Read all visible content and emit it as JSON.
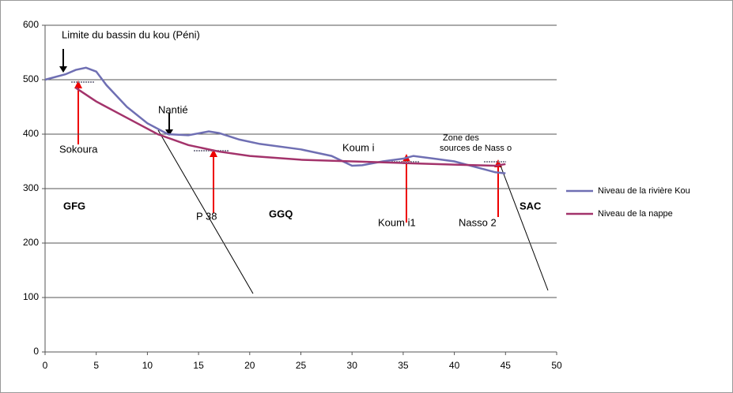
{
  "chart_data": {
    "type": "line",
    "series": [
      {
        "name": "Niveau de la rivière Kou",
        "color": "#6f6fb3",
        "x": [
          0,
          2,
          3,
          4,
          5,
          6,
          8,
          10,
          12,
          14,
          16,
          17,
          19,
          21,
          25,
          28,
          30,
          31,
          33,
          35,
          36,
          38,
          40,
          42,
          43,
          44,
          45
        ],
        "values": [
          500,
          510,
          518,
          522,
          515,
          490,
          450,
          420,
          400,
          398,
          405,
          402,
          390,
          382,
          372,
          360,
          342,
          343,
          350,
          355,
          360,
          355,
          350,
          340,
          335,
          330,
          328
        ]
      },
      {
        "name": "Niveau de la nappe",
        "color": "#a3336b",
        "x": [
          3,
          5,
          8,
          11,
          14,
          17,
          20,
          25,
          30,
          35,
          40,
          44,
          45
        ],
        "values": [
          485,
          460,
          430,
          400,
          380,
          368,
          360,
          353,
          350,
          347,
          344,
          342,
          345
        ]
      }
    ],
    "annotations": [
      "Limite du bassin du kou (Péni)",
      "Nantié",
      "Sokoura",
      "P 38",
      "Koum i",
      "Koum i1",
      "Zone des",
      "sources de Nass o",
      "Nasso 2",
      "GFG",
      "GGQ",
      "SAC"
    ],
    "xlim": [
      0,
      50
    ],
    "xticks": [
      0,
      5,
      10,
      15,
      20,
      25,
      30,
      35,
      40,
      45,
      50
    ],
    "ylim": [
      0,
      600
    ],
    "yticks": [
      0,
      100,
      200,
      300,
      400,
      500,
      600
    ],
    "grid": true,
    "legend": "right"
  }
}
